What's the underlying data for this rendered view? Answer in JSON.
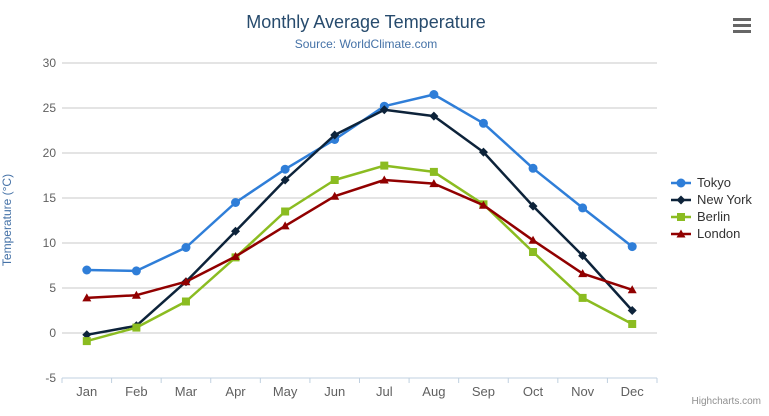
{
  "header": {
    "title": "Monthly Average Temperature",
    "subtitle": "Source: WorldClimate.com",
    "export_icon": "hamburger-menu-icon"
  },
  "credits": "Highcharts.com",
  "colors": {
    "title": "#274b6d",
    "subtitle": "#4572a7",
    "axis_labels": "#606060",
    "gridline": "#c8c8c8",
    "axis_line": "#c0d0e0",
    "legend_text": "#333333"
  },
  "chart_data": {
    "type": "line",
    "title": "Monthly Average Temperature",
    "subtitle": "Source: WorldClimate.com",
    "categories": [
      "Jan",
      "Feb",
      "Mar",
      "Apr",
      "May",
      "Jun",
      "Jul",
      "Aug",
      "Sep",
      "Oct",
      "Nov",
      "Dec"
    ],
    "series": [
      {
        "name": "Tokyo",
        "color": "#2f7ed8",
        "marker": "circle",
        "values": [
          7.0,
          6.9,
          9.5,
          14.5,
          18.2,
          21.5,
          25.2,
          26.5,
          23.3,
          18.3,
          13.9,
          9.6
        ]
      },
      {
        "name": "New York",
        "color": "#0d233a",
        "marker": "diamond",
        "values": [
          -0.2,
          0.8,
          5.7,
          11.3,
          17.0,
          22.0,
          24.8,
          24.1,
          20.1,
          14.1,
          8.6,
          2.5
        ]
      },
      {
        "name": "Berlin",
        "color": "#8bbc21",
        "marker": "square",
        "values": [
          -0.9,
          0.6,
          3.5,
          8.4,
          13.5,
          17.0,
          18.6,
          17.9,
          14.3,
          9.0,
          3.9,
          1.0
        ]
      },
      {
        "name": "London",
        "color": "#910000",
        "marker": "triangle",
        "values": [
          3.9,
          4.2,
          5.7,
          8.5,
          11.9,
          15.2,
          17.0,
          16.6,
          14.2,
          10.3,
          6.6,
          4.8
        ]
      }
    ],
    "xlabel": "",
    "ylabel": "Temperature (°C)",
    "ylim": [
      -5,
      30
    ],
    "y_ticks": [
      -5,
      0,
      5,
      10,
      15,
      20,
      25,
      30
    ],
    "grid": "horizontal",
    "legend_position": "right"
  }
}
